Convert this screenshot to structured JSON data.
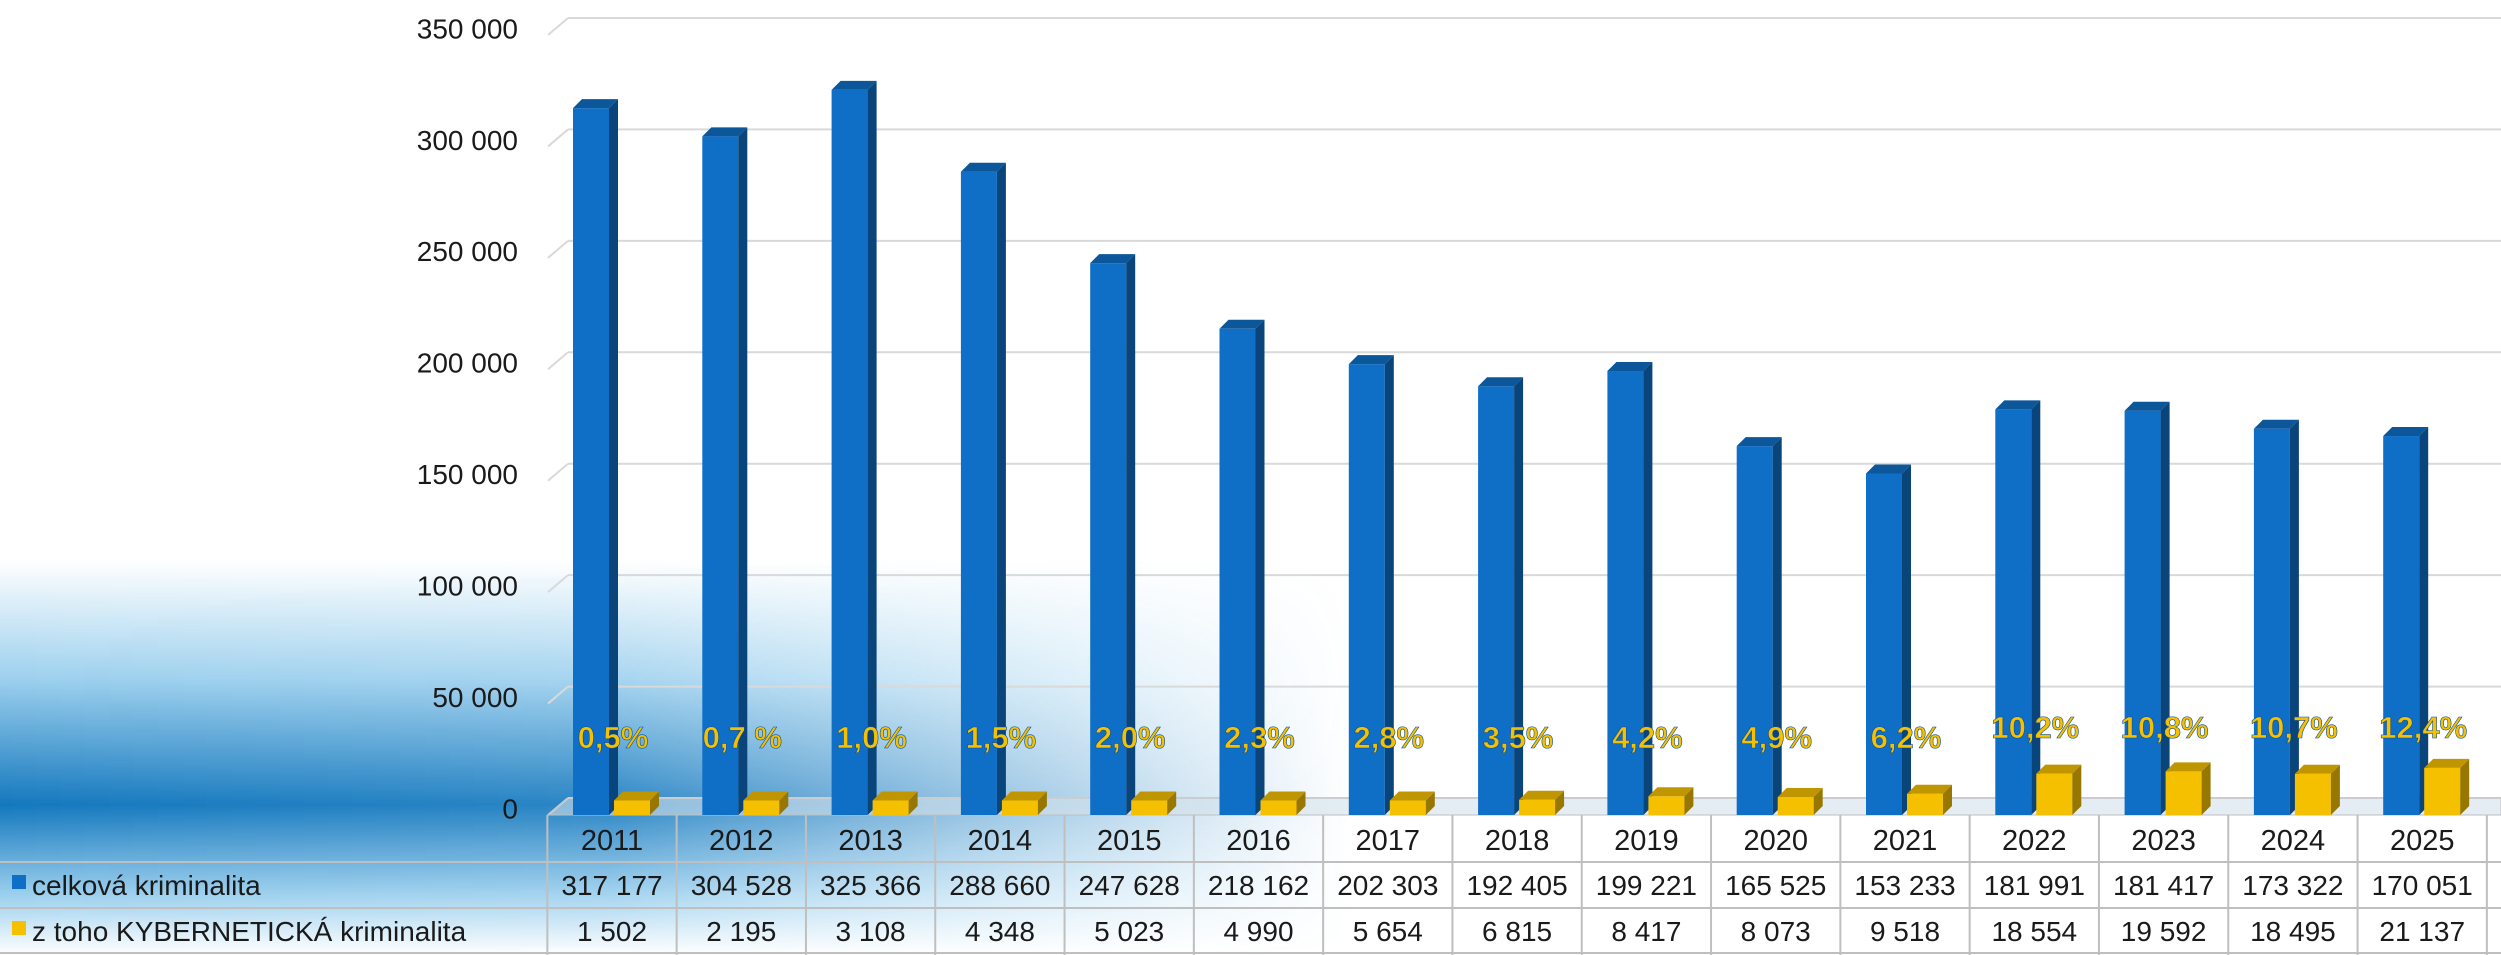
{
  "chart_data": {
    "type": "bar",
    "categories": [
      "2011",
      "2012",
      "2013",
      "2014",
      "2015",
      "2016",
      "2017",
      "2018",
      "2019",
      "2020",
      "2021",
      "2022",
      "2023",
      "2024",
      "2025"
    ],
    "series": [
      {
        "name": "celková kriminalita",
        "color": "#0f6ec6",
        "values": [
          317177,
          304528,
          325366,
          288660,
          247628,
          218162,
          202303,
          192405,
          199221,
          165525,
          153233,
          181991,
          181417,
          173322,
          170051
        ],
        "value_labels": [
          "317 177",
          "304 528",
          "325 366",
          "288 660",
          "247 628",
          "218 162",
          "202 303",
          "192 405",
          "199 221",
          "165 525",
          "153 233",
          "181 991",
          "181 417",
          "173 322",
          "170 051"
        ]
      },
      {
        "name": "z toho KYBERNETICKÁ kriminalita",
        "color": "#f5c000",
        "values": [
          1502,
          2195,
          3108,
          4348,
          5023,
          4990,
          5654,
          6815,
          8417,
          8073,
          9518,
          18554,
          19592,
          18495,
          21137
        ],
        "value_labels": [
          "1 502",
          "2 195",
          "3 108",
          "4 348",
          "5 023",
          "4 990",
          "5 654",
          "6 815",
          "8 417",
          "8 073",
          "9 518",
          "18 554",
          "19 592",
          "18 495",
          "21 137"
        ]
      }
    ],
    "percent_labels": [
      "0,5%",
      "0,7 %",
      "1,0%",
      "1,5%",
      "2,0%",
      "2,3%",
      "2,8%",
      "3,5%",
      "4,2%",
      "4,9%",
      "6,2%",
      "10,2%",
      "10,8%",
      "10,7%",
      "12,4%"
    ],
    "ylim": [
      0,
      350000
    ],
    "yticks": [
      0,
      50000,
      100000,
      150000,
      200000,
      250000,
      300000,
      350000
    ],
    "ytick_labels": [
      "0",
      "50 000",
      "100 000",
      "150 000",
      "200 000",
      "250 000",
      "300 000",
      "350 000"
    ],
    "grid": true,
    "legend": "data table below chart",
    "percent_label_color": "#f5c000"
  }
}
